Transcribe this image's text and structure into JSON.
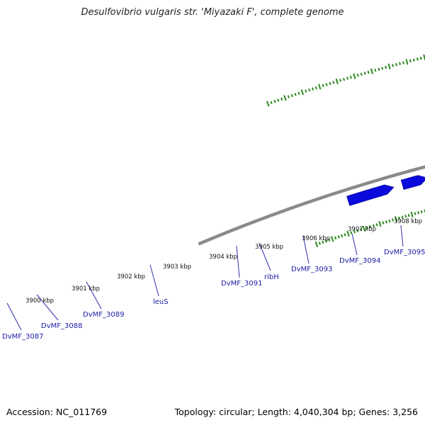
{
  "title": "Desulfovibrio vulgaris str. 'Miyazaki F', complete genome",
  "footer": {
    "accession": "Accession: NC_011769",
    "topology": "Topology: circular; Length: 4,040,304 bp; Genes: 3,256"
  },
  "colors": {
    "backbone": "#8a8a8a",
    "gene_blue": "#0a0adc",
    "gene_pink": "#ee8a8a",
    "gene_orange": "#f59300",
    "tick_green": "#2c8a1e",
    "label_blue": "#1a1aa6",
    "leader_line": "#3030b0"
  },
  "ruler_labels": [
    "3900 kbp",
    "3901 kbp",
    "3902 kbp",
    "3903 kbp",
    "3904 kbp",
    "3905 kbp",
    "3906 kbp",
    "3907 kbp",
    "3908 kbp"
  ],
  "gene_labels": [
    "DvMF_3087",
    "DvMF_3088",
    "DvMF_3089",
    "leuS",
    "DvMF_3091",
    "ribH",
    "DvMF_3093",
    "DvMF_3094",
    "DvMF_3095"
  ]
}
